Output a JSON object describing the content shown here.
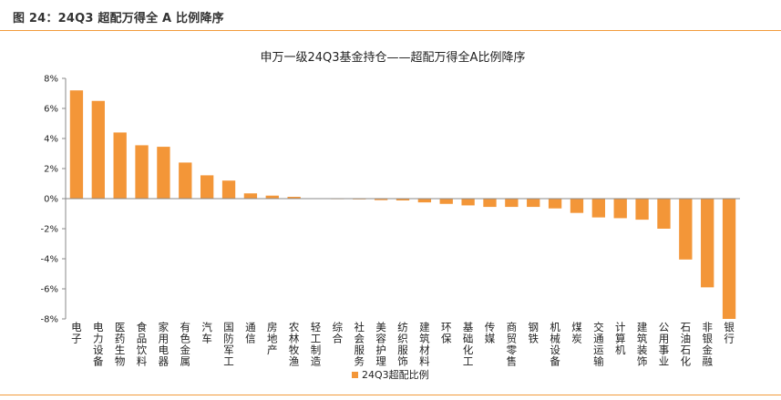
{
  "caption": "图 24：24Q3 超配万得全 A 比例降序",
  "colors": {
    "bar": "#f39638",
    "rule": "#f29a3b",
    "axis": "#888888"
  },
  "chart_data": {
    "type": "bar",
    "title": "申万一级24Q3基金持仓——超配万得全A比例降序",
    "xlabel": "",
    "ylabel": "",
    "ylim": [
      -8,
      8
    ],
    "ytick_step": 2,
    "ytick_suffix": "%",
    "legend": "bottom",
    "grid": false,
    "categories": [
      "电子",
      "电力设备",
      "医药生物",
      "食品饮料",
      "家用电器",
      "有色金属",
      "汽车",
      "国防军工",
      "通信",
      "房地产",
      "农林牧渔",
      "轻工制造",
      "综合",
      "社会服务",
      "美容护理",
      "纺织服饰",
      "建筑材料",
      "环保",
      "基础化工",
      "传媒",
      "商贸零售",
      "钢铁",
      "机械设备",
      "煤炭",
      "交通运输",
      "计算机",
      "建筑装饰",
      "公用事业",
      "石油石化",
      "非银金融",
      "银行"
    ],
    "series": [
      {
        "name": "24Q3超配比例",
        "values": [
          7.2,
          6.5,
          4.4,
          3.55,
          3.45,
          2.4,
          1.55,
          1.2,
          0.35,
          0.2,
          0.12,
          0.0,
          -0.02,
          -0.05,
          -0.1,
          -0.12,
          -0.25,
          -0.35,
          -0.45,
          -0.55,
          -0.55,
          -0.55,
          -0.65,
          -0.95,
          -1.25,
          -1.3,
          -1.4,
          -2.0,
          -4.05,
          -5.9,
          -8.0
        ]
      }
    ]
  }
}
